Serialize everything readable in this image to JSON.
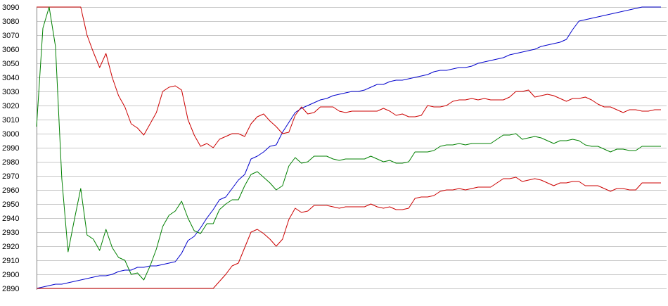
{
  "chart_data": {
    "type": "line",
    "title": "",
    "xlabel": "",
    "ylabel": "",
    "ylim": [
      2890,
      3090
    ],
    "yticks": [
      2890,
      2900,
      2910,
      2920,
      2930,
      2940,
      2950,
      2960,
      2970,
      2980,
      2990,
      3000,
      3010,
      3020,
      3030,
      3040,
      3050,
      3060,
      3070,
      3080,
      3090
    ],
    "x": [
      1,
      2,
      3,
      4,
      5,
      6,
      7,
      8,
      9,
      10,
      11,
      12,
      13,
      14,
      15,
      16,
      17,
      18,
      19,
      20,
      21,
      22,
      23,
      24,
      25,
      26,
      27,
      28,
      29,
      30,
      31,
      32,
      33,
      34,
      35,
      36,
      37,
      38,
      39,
      40,
      41,
      42,
      43,
      44,
      45,
      46,
      47,
      48,
      49,
      50,
      51,
      52,
      53,
      54,
      55,
      56,
      57,
      58,
      59,
      60,
      61,
      62,
      63,
      64,
      65,
      66,
      67,
      68,
      69,
      70,
      71,
      72,
      73,
      74,
      75,
      76,
      77,
      78,
      79,
      80,
      81,
      82,
      83,
      84,
      85,
      86,
      87,
      88,
      89,
      90,
      91,
      92,
      93,
      94,
      95,
      96,
      97,
      98,
      99,
      100
    ],
    "xlim": [
      1,
      100
    ],
    "grid": true,
    "legend": "none",
    "series": [
      {
        "color": "#0000cc",
        "values": [
          2890,
          2891,
          2892,
          2893,
          2893,
          2894,
          2895,
          2896,
          2897,
          2898,
          2899,
          2899,
          2900,
          2902,
          2903,
          2903,
          2905,
          2905,
          2906,
          2906,
          2907,
          2908,
          2909,
          2915,
          2924,
          2927,
          2933,
          2940,
          2946,
          2953,
          2955,
          2961,
          2967,
          2971,
          2982,
          2984,
          2987,
          2991,
          2992,
          3001,
          3008,
          3015,
          3018,
          3020,
          3022,
          3024,
          3025,
          3027,
          3028,
          3029,
          3030,
          3030,
          3031,
          3033,
          3035,
          3035,
          3037,
          3038,
          3038,
          3039,
          3040,
          3041,
          3042,
          3044,
          3045,
          3045,
          3046,
          3047,
          3047,
          3048,
          3050,
          3051,
          3052,
          3053,
          3054,
          3056,
          3057,
          3058,
          3059,
          3060,
          3062,
          3063,
          3064,
          3065,
          3067,
          3074,
          3080,
          3081,
          3082,
          3083,
          3084,
          3085,
          3086,
          3087,
          3088,
          3089,
          3090,
          3090,
          3090,
          3090
        ]
      },
      {
        "color": "#cc0000",
        "values": [
          3090,
          3090,
          3090,
          3090,
          3090,
          3090,
          3090,
          3090,
          3070,
          3058,
          3047,
          3057,
          3040,
          3027,
          3019,
          3007,
          3004,
          2999,
          3007,
          3015,
          3030,
          3033,
          3034,
          3031,
          3010,
          2999,
          2991,
          2993,
          2990,
          2996,
          2998,
          3000,
          3000,
          2998,
          3007,
          3012,
          3014,
          3009,
          3005,
          3000,
          3001,
          3013,
          3019,
          3014,
          3015,
          3019,
          3019,
          3019,
          3016,
          3015,
          3016,
          3016,
          3016,
          3016,
          3016,
          3018,
          3016,
          3013,
          3014,
          3012,
          3012,
          3013,
          3020,
          3019,
          3019,
          3020,
          3023,
          3024,
          3024,
          3025,
          3024,
          3025,
          3024,
          3024,
          3024,
          3026,
          3030,
          3030,
          3031,
          3026,
          3027,
          3028,
          3027,
          3025,
          3023,
          3025,
          3025,
          3026,
          3024,
          3021,
          3019,
          3019,
          3017,
          3015,
          3017,
          3017,
          3016,
          3016,
          3017,
          3017
        ]
      },
      {
        "color": "#008000",
        "values": [
          3005,
          3075,
          3090,
          3062,
          2968,
          2916,
          2939,
          2961,
          2928,
          2925,
          2917,
          2932,
          2919,
          2912,
          2910,
          2900,
          2901,
          2896,
          2906,
          2918,
          2934,
          2942,
          2945,
          2952,
          2940,
          2931,
          2929,
          2936,
          2936,
          2946,
          2950,
          2953,
          2953,
          2963,
          2971,
          2973,
          2969,
          2965,
          2960,
          2963,
          2977,
          2983,
          2979,
          2980,
          2984,
          2984,
          2984,
          2982,
          2981,
          2982,
          2982,
          2982,
          2982,
          2984,
          2982,
          2980,
          2981,
          2979,
          2979,
          2980,
          2987,
          2987,
          2987,
          2988,
          2991,
          2992,
          2992,
          2993,
          2992,
          2993,
          2993,
          2993,
          2993,
          2996,
          2999,
          2999,
          3000,
          2996,
          2997,
          2998,
          2997,
          2995,
          2993,
          2995,
          2995,
          2996,
          2995,
          2992,
          2991,
          2991,
          2989,
          2987,
          2989,
          2989,
          2988,
          2988,
          2991,
          2991,
          2991,
          2991
        ]
      },
      {
        "color": "#cc0000",
        "values": [
          2890,
          2890,
          2890,
          2890,
          2890,
          2890,
          2890,
          2890,
          2890,
          2890,
          2890,
          2890,
          2890,
          2890,
          2890,
          2890,
          2890,
          2890,
          2890,
          2890,
          2890,
          2890,
          2890,
          2890,
          2890,
          2890,
          2890,
          2890,
          2890,
          2895,
          2900,
          2906,
          2908,
          2919,
          2930,
          2932,
          2929,
          2925,
          2920,
          2925,
          2939,
          2947,
          2944,
          2945,
          2949,
          2949,
          2949,
          2948,
          2947,
          2948,
          2948,
          2948,
          2948,
          2950,
          2948,
          2947,
          2948,
          2946,
          2946,
          2947,
          2954,
          2955,
          2955,
          2956,
          2959,
          2960,
          2960,
          2961,
          2960,
          2961,
          2962,
          2962,
          2962,
          2965,
          2968,
          2968,
          2969,
          2966,
          2967,
          2968,
          2967,
          2965,
          2963,
          2965,
          2965,
          2966,
          2966,
          2963,
          2963,
          2963,
          2961,
          2959,
          2961,
          2961,
          2960,
          2960,
          2965,
          2965,
          2965,
          2965
        ]
      }
    ]
  }
}
